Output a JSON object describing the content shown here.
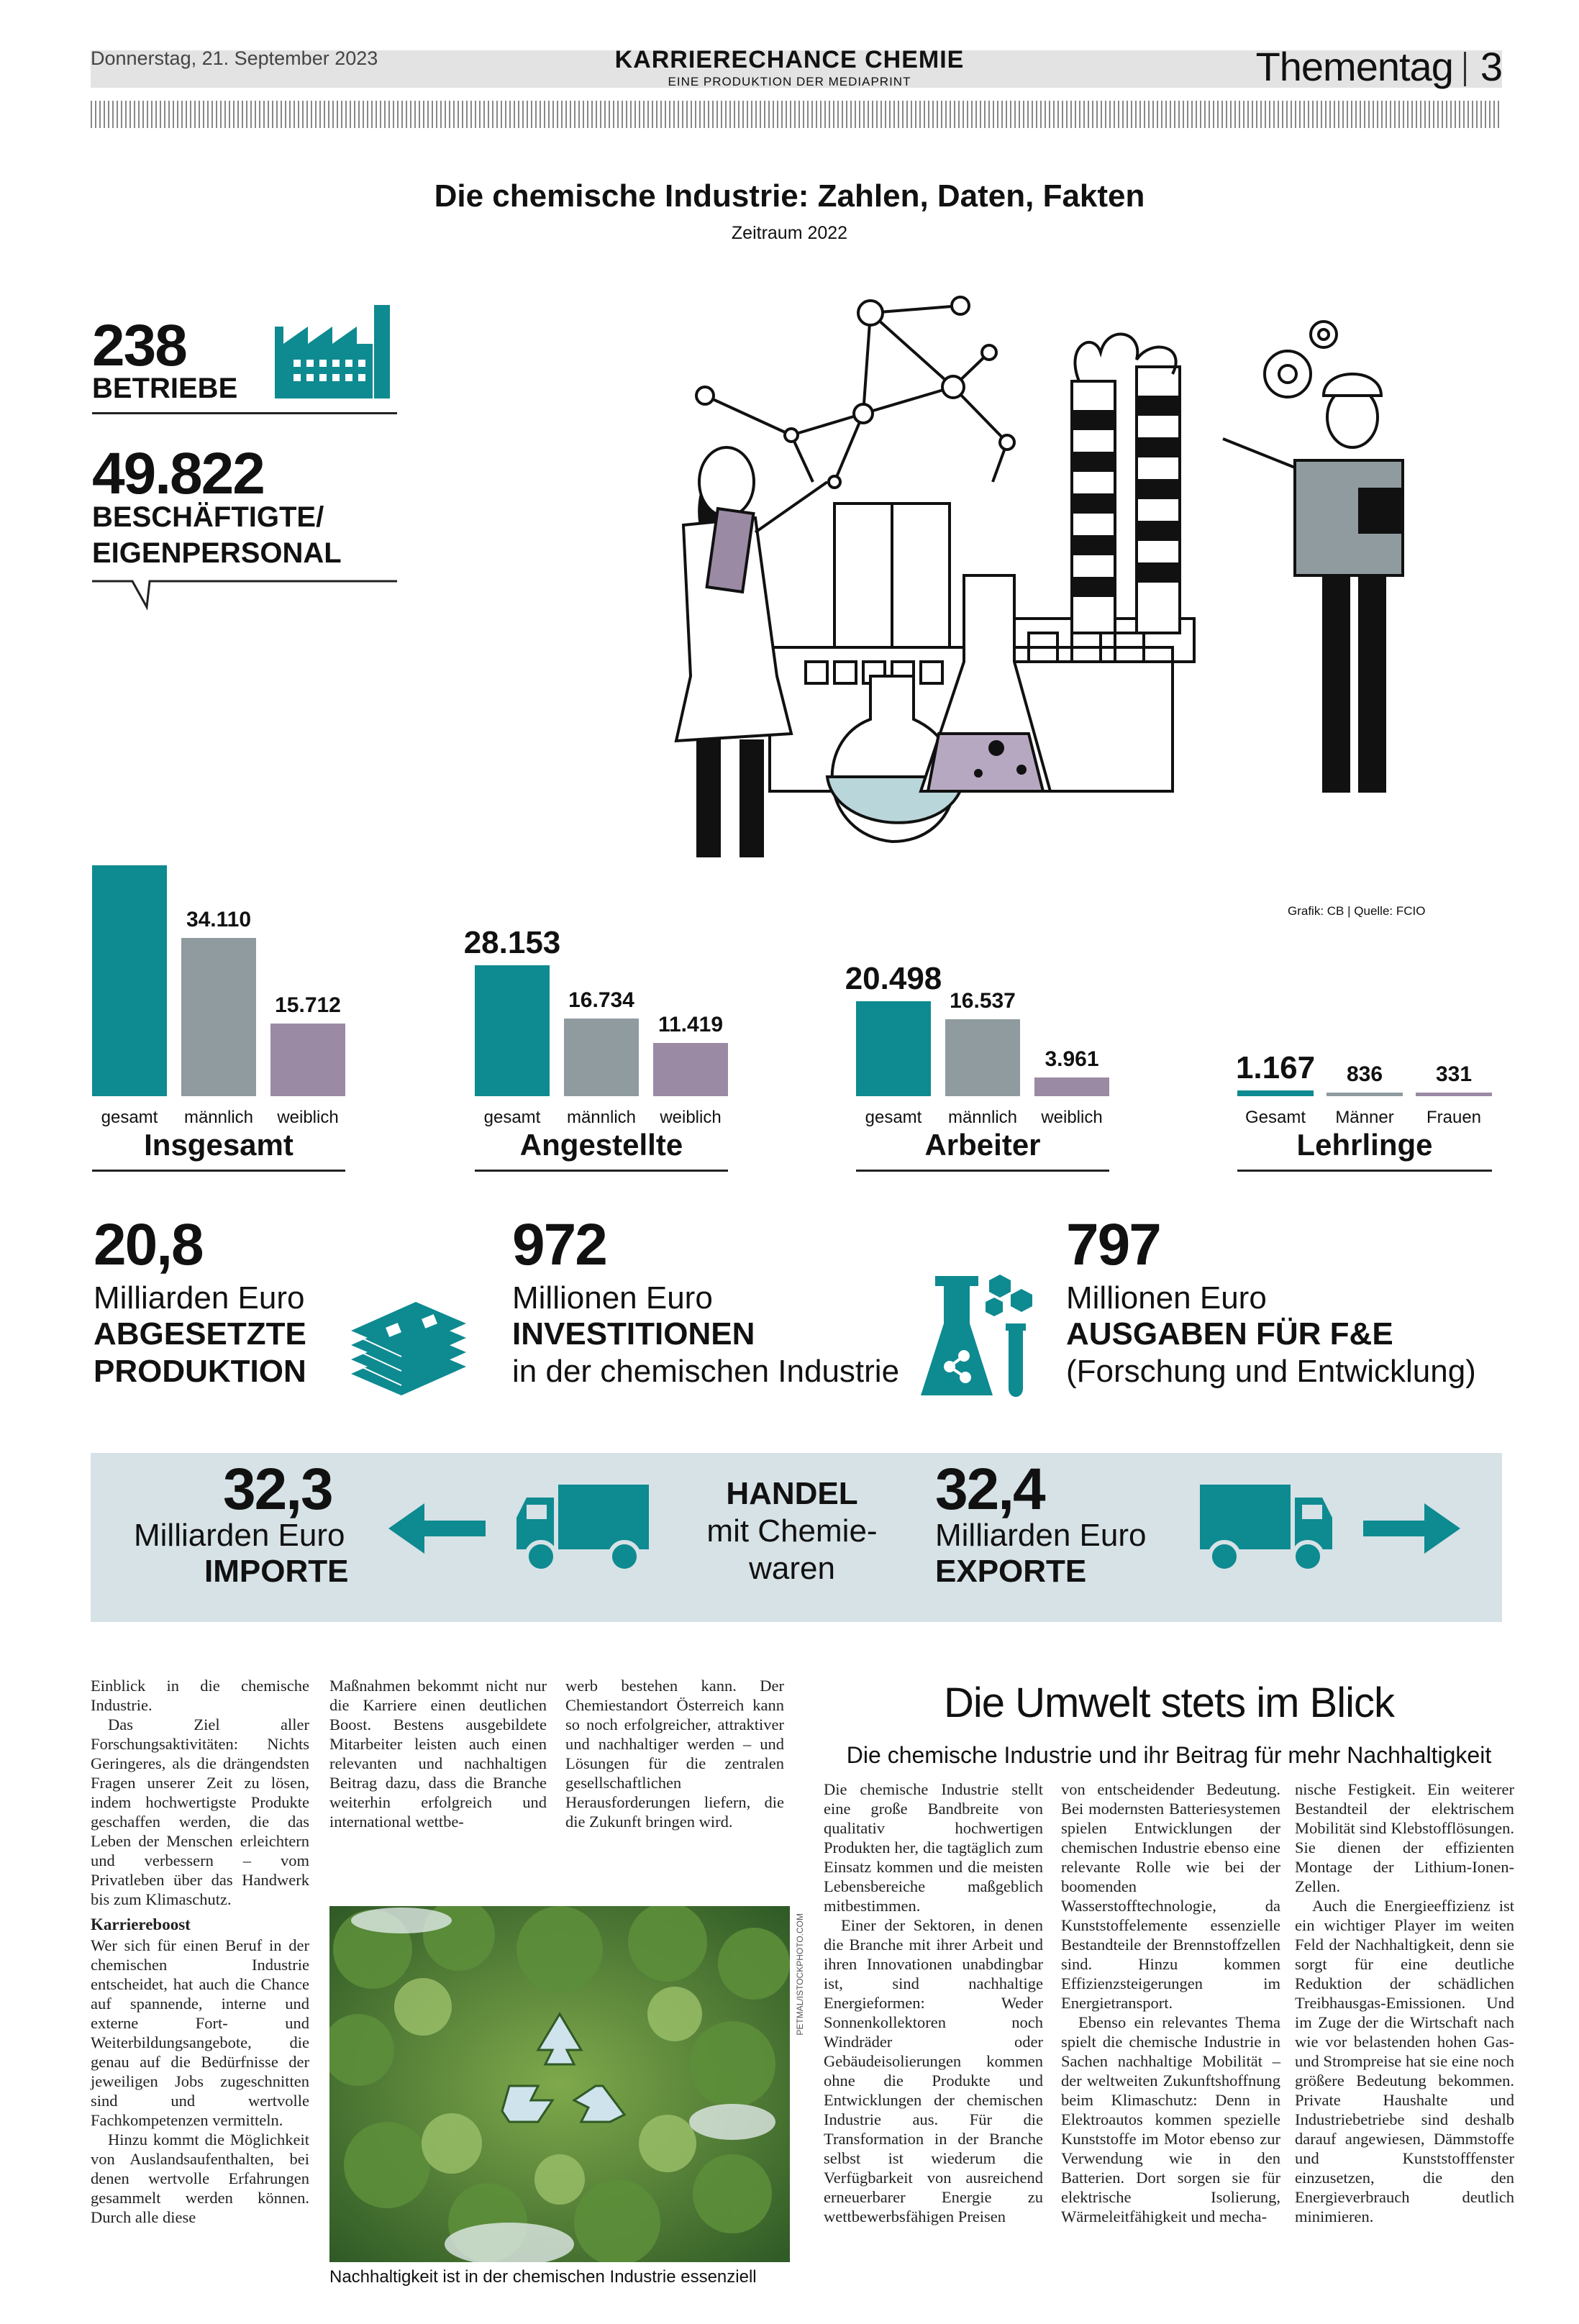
{
  "header": {
    "date": "Donnerstag, 21. September 2023",
    "title": "KARRIERECHANCE CHEMIE",
    "subtitle": "EINE PRODUKTION DER MEDIAPRINT",
    "section": "Thementag",
    "page": "3"
  },
  "infographic": {
    "title": "Die chemische Industrie: Zahlen, Daten, Fakten",
    "period": "Zeitraum 2022",
    "betriebe_value": "238",
    "betriebe_label": "BETRIEBE",
    "employees_value": "49.822",
    "employees_label_1": "BESCHÄFTIGTE/",
    "employees_label_2": "EIGENPERSONAL",
    "credit": "Grafik: CB | Quelle: FCIO"
  },
  "chart_data": {
    "type": "bar",
    "colors": {
      "gesamt": "#0e8a91",
      "maennlich": "#909ba0",
      "weiblich": "#9a8aa4"
    },
    "groups": [
      {
        "title": "Insgesamt",
        "categories": [
          "gesamt",
          "männlich",
          "weiblich"
        ],
        "values": [
          49822,
          34110,
          15712
        ],
        "labels": [
          "",
          "34.110",
          "15.712"
        ]
      },
      {
        "title": "Angestellte",
        "categories": [
          "gesamt",
          "männlich",
          "weiblich"
        ],
        "values": [
          28153,
          16734,
          11419
        ],
        "labels": [
          "28.153",
          "16.734",
          "11.419"
        ]
      },
      {
        "title": "Arbeiter",
        "categories": [
          "gesamt",
          "männlich",
          "weiblich"
        ],
        "values": [
          20498,
          16537,
          3961
        ],
        "labels": [
          "20.498",
          "16.537",
          "3.961"
        ]
      },
      {
        "title": "Lehrlinge",
        "categories": [
          "Gesamt",
          "Männer",
          "Frauen"
        ],
        "values": [
          1167,
          836,
          331
        ],
        "labels": [
          "1.167",
          "836",
          "331"
        ]
      }
    ]
  },
  "kpis": {
    "production": {
      "value": "20,8",
      "unit": "Milliarden Euro",
      "label_1": "ABGESETZTE",
      "label_2": "PRODUKTION"
    },
    "investment": {
      "value": "972",
      "unit": "Millionen Euro",
      "label": "INVESTITIONEN",
      "note": "in der chemischen Industrie"
    },
    "rnd": {
      "value": "797",
      "unit": "Millionen Euro",
      "label": "AUSGABEN FÜR F&E",
      "note": "(Forschung und Entwicklung)"
    }
  },
  "trade": {
    "imports_value": "32,3",
    "imports_unit": "Milliarden Euro",
    "imports_label": "IMPORTE",
    "center_title": "HANDEL",
    "center_line_1": "mit Chemie-",
    "center_line_2": "waren",
    "exports_value": "32,4",
    "exports_unit": "Milliarden Euro",
    "exports_label": "EXPORTE"
  },
  "article_left": {
    "col1_p1": "Einblick in die chemische Industrie.",
    "col1_p2": "Das Ziel aller Forschungsaktivitäten: Nichts Geringeres, als die drängendsten Fragen unserer Zeit zu lösen, indem hochwertigste Produkte geschaffen werden, die das Leben der Menschen erleichtern und verbessern – vom Privatleben über das Handwerk bis zum Klimaschutz.",
    "col1_heading": "Karriereboost",
    "col1_p3": "Wer sich für einen Beruf in der chemischen Industrie entscheidet, hat auch die Chance auf spannende, interne und externe Fort- und Weiterbildungsangebote, die genau auf die Bedürfnisse der jeweiligen Jobs zugeschnitten sind und wertvolle Fachkompetenzen vermitteln.",
    "col1_p4": "Hinzu kommt die Möglichkeit von Auslandsaufenthalten, bei denen wertvolle Erfahrungen gesammelt werden können. Durch alle diese",
    "col2_p1": "Maßnahmen bekommt nicht nur die Karriere einen deutlichen Boost. Bestens ausgebildete Mitarbeiter leisten auch einen relevanten und nachhaltigen Beitrag dazu, dass die Branche weiterhin erfolgreich und international wettbe-",
    "col3_p1": "werb bestehen kann. Der Chemiestandort Österreich kann so noch erfolgreicher, attraktiver und nachhaltiger werden – und Lösungen für die zentralen gesellschaftlichen Herausforderungen liefern, die die Zukunft bringen wird.",
    "photo_caption": "Nachhaltigkeit ist in der chemischen Industrie essenziell",
    "photo_credit": "PETMAL/ISTOCKPHOTO.COM"
  },
  "article_right": {
    "title": "Die Umwelt stets im Blick",
    "subtitle": "Die chemische Industrie und ihr Beitrag für mehr Nachhaltigkeit",
    "col1_p1": "Die chemische Industrie stellt eine große Bandbreite von qualitativ hochwertigen Produkten her, die tagtäglich zum Einsatz kommen und die meisten Lebensbereiche maßgeblich mitbestimmen.",
    "col1_p2": "Einer der Sektoren, in denen die Branche mit ihrer Arbeit und ihren Innovationen unabdingbar ist, sind nachhaltige Energieformen: Weder Sonnenkollektoren noch Windräder oder Gebäudeisolierungen kommen ohne die Produkte und Entwicklungen der chemischen Industrie aus. Für die Transformation in der Branche selbst ist wiederum die Verfügbarkeit von ausreichend erneuerbarer Energie zu wettbewerbsfähigen Preisen",
    "col2_p1": "von entscheidender Bedeutung. Bei modernsten Batteriesystemen spielen Entwicklungen der chemischen Industrie ebenso eine relevante Rolle wie bei der boomenden Wasserstofftechnologie, da Kunststoffelemente essenzielle Bestandteile der Brennstoffzellen sind. Hinzu kommen Effizienzsteigerungen im Energietransport.",
    "col2_p2": "Ebenso ein relevantes Thema spielt die chemische Industrie in Sachen nachhaltige Mobilität – der weltweiten Zukunftshoffnung beim Klimaschutz: Denn in Elektroautos kommen spezielle Kunststoffe im Motor ebenso zur Verwendung wie in den Batterien. Dort sorgen sie für elektrische Isolierung, Wärmeleitfähigkeit und mecha-",
    "col3_p1": "nische Festigkeit. Ein weiterer Bestandteil der elektrischem Mobilität sind Klebstofflösungen. Sie dienen der effizienten Montage der Lithium-Ionen-Zellen.",
    "col3_p2": "Auch die Energieeffizienz ist ein wichtiger Player im weiten Feld der Nachhaltigkeit, denn sie sorgt für eine deutliche Reduktion der schädlichen Treibhausgas-Emissionen. Und im Zuge der die Wirtschaft nach wie vor belastenden hohen Gas- und Strompreise hat sie eine noch größere Bedeutung bekommen. Private Haushalte und Industriebetriebe sind deshalb darauf angewiesen, Dämmstoffe und Kunststofffenster einzusetzen, die den Energieverbrauch deutlich minimieren."
  }
}
